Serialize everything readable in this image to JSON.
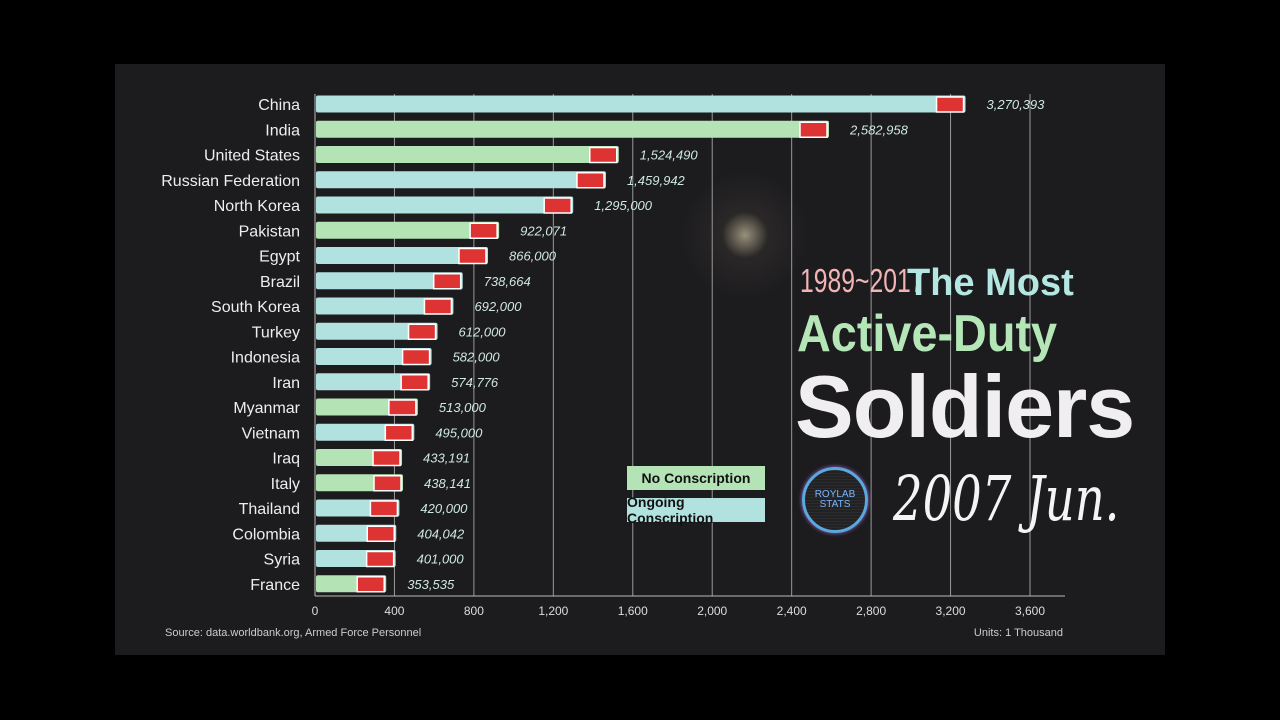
{
  "chart_data": {
    "type": "bar",
    "orientation": "horizontal",
    "title_parts": {
      "years": "1989~2017",
      "line1": "The Most",
      "line2": "Active-Duty",
      "line3": "Soldiers",
      "date": "2007 Jun."
    },
    "categories": [
      "China",
      "India",
      "United States",
      "Russian Federation",
      "North Korea",
      "Pakistan",
      "Egypt",
      "Brazil",
      "South Korea",
      "Turkey",
      "Indonesia",
      "Iran",
      "Myanmar",
      "Vietnam",
      "Iraq",
      "Italy",
      "Thailand",
      "Colombia",
      "Syria",
      "France"
    ],
    "values": [
      3270393,
      2582958,
      1524490,
      1459942,
      1295000,
      922071,
      866000,
      738664,
      692000,
      612000,
      582000,
      574776,
      513000,
      495000,
      433191,
      438141,
      420000,
      404042,
      401000,
      353535
    ],
    "value_labels": [
      "3,270,393",
      "2,582,958",
      "1,524,490",
      "1,459,942",
      "1,295,000",
      "922,071",
      "866,000",
      "738,664",
      "692,000",
      "612,000",
      "582,000",
      "574,776",
      "513,000",
      "495,000",
      "433,191",
      "438,141",
      "420,000",
      "404,042",
      "401,000",
      "353,535"
    ],
    "conscription": [
      "ongoing",
      "none",
      "none",
      "ongoing",
      "ongoing",
      "none",
      "ongoing",
      "ongoing",
      "ongoing",
      "ongoing",
      "ongoing",
      "ongoing",
      "none",
      "ongoing",
      "none",
      "none",
      "ongoing",
      "ongoing",
      "ongoing",
      "none"
    ],
    "xlim": [
      0,
      3700
    ],
    "xticks": [
      0,
      400,
      800,
      1200,
      1600,
      2000,
      2400,
      2800,
      3200,
      3600
    ],
    "xtick_labels": [
      "0",
      "400",
      "800",
      "1,200",
      "1,600",
      "2,000",
      "2,400",
      "2,800",
      "3,200",
      "3,600"
    ],
    "grid": true,
    "legend": {
      "placement": "center-right",
      "items": [
        {
          "label": "No Conscription",
          "color": "#b4e3b6"
        },
        {
          "label": "Ongoing Conscription",
          "color": "#b2e2e0"
        }
      ]
    },
    "colors": {
      "none": "#b4e3b6",
      "ongoing": "#b2e2e0"
    }
  },
  "source": "Source: data.worldbank.org, Armed Force Personnel",
  "units": "Units: 1 Thousand",
  "logo_text": [
    "ROYLAB",
    "STATS"
  ]
}
